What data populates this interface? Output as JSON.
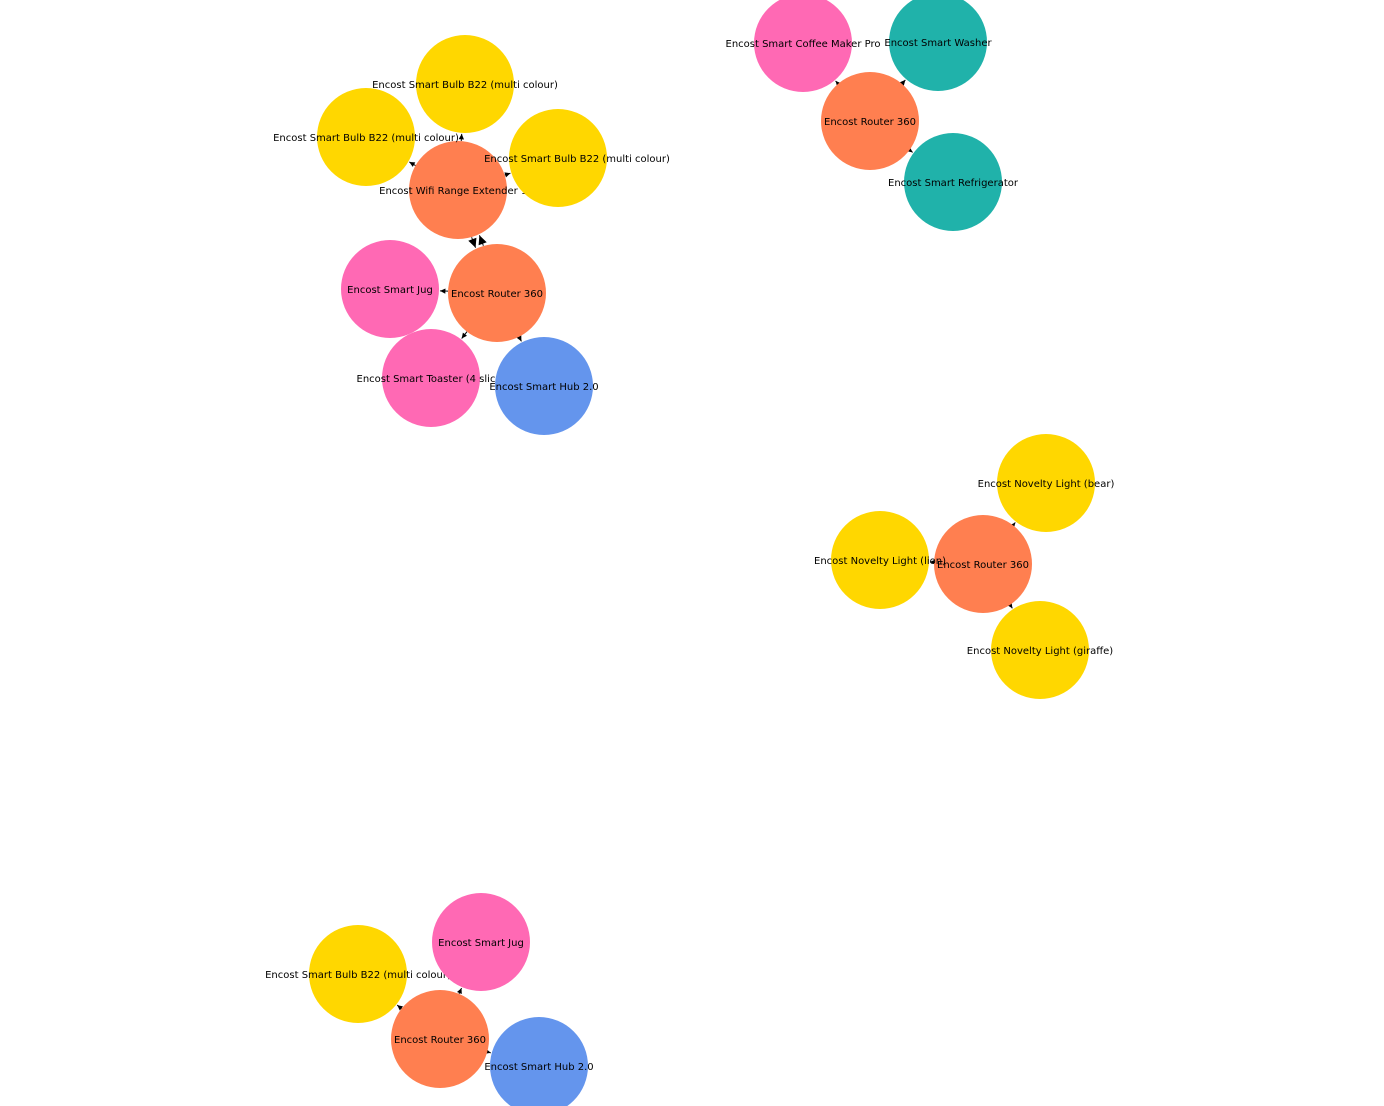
{
  "colors": {
    "router": "#ff7f50",
    "bulb": "#ffd700",
    "appliance": "#ff69b4",
    "hub": "#6495ed",
    "white_goods": "#20b2aa",
    "edge": "#000000",
    "background": "#ffffff"
  },
  "labels": {
    "n1": "Encost Wifi Range Extender 1.0",
    "n2": "Encost Smart Bulb B22 (multi colour)",
    "n3": "Encost Smart Bulb B22 (multi colour)",
    "n4": "Encost Smart Bulb B22 (multi colour)",
    "n5": "Encost Router 360",
    "n6": "Encost Smart Jug",
    "n7": "Encost Smart Toaster (4 slice)",
    "n8": "Encost Smart Hub 2.0",
    "n9": "Encost Router 360",
    "n10": "Encost Smart Coffee Maker Pro",
    "n11": "Encost Smart Washer",
    "n12": "Encost Smart Refrigerator",
    "n13": "Encost Router 360",
    "n14": "Encost Novelty Light (bear)",
    "n15": "Encost Novelty Light (lion)",
    "n16": "Encost Novelty Light (giraffe)",
    "n17": "Encost Router 360",
    "n18": "Encost Smart Bulb B22 (multi colour)",
    "n19": "Encost Smart Jug",
    "n20": "Encost Smart Hub 2.0"
  }
}
